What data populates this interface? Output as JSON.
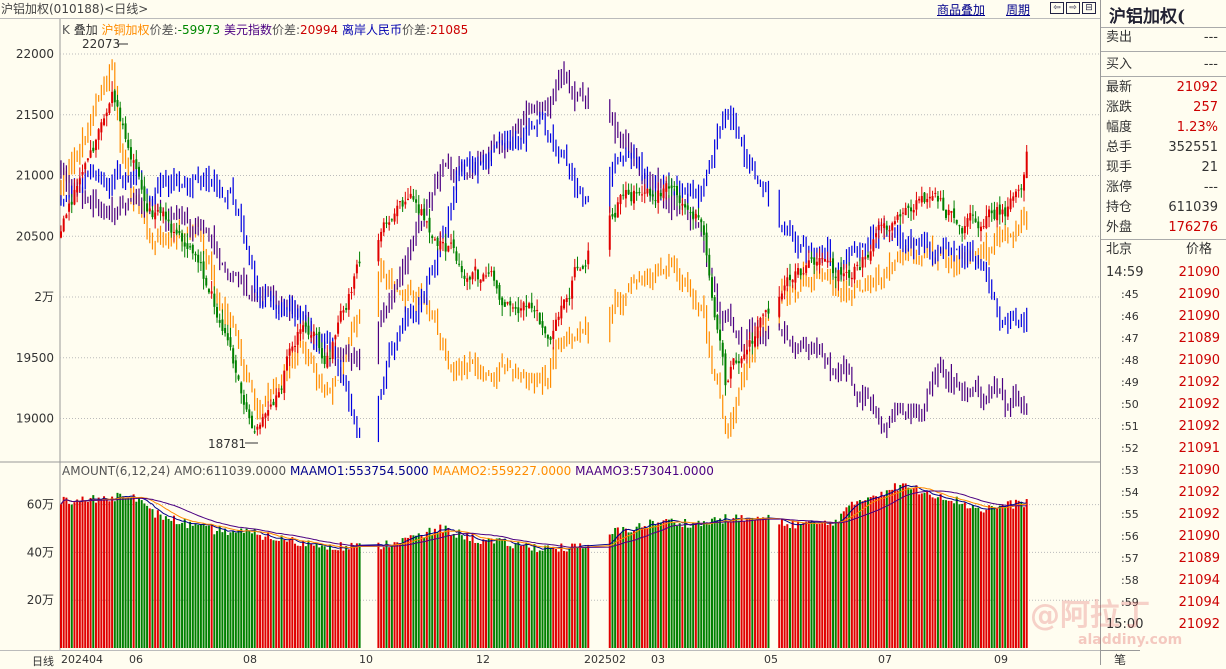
{
  "header": {
    "title": "沪铝加权(010188)<日线>",
    "overlay_link": "商品叠加",
    "period_link": "周期"
  },
  "legend": {
    "k": "K",
    "overlay": "叠加",
    "s1_name": "沪铜加权",
    "s1_diff_label": "价差:",
    "s1_diff": "-59973",
    "s2_name": "美元指数",
    "s2_diff_label": "价差:",
    "s2_diff": "20994",
    "s3_name": "离岸人民币",
    "s3_diff_label": "价差:",
    "s3_diff": "21085"
  },
  "annotations": {
    "high": "22073",
    "low": "18781"
  },
  "price_axis": [
    "22000",
    "21500",
    "21000",
    "20500",
    "2万",
    "19500",
    "19000"
  ],
  "volume_axis": [
    "60万",
    "40万",
    "20万"
  ],
  "volume_legend": {
    "name": "AMOUNT(6,12,24)",
    "amo": "AMO:611039.0000",
    "ma1": "MAAMO1:553754.5000",
    "ma2": "MAAMO2:559227.0000",
    "ma3": "MAAMO3:573041.0000"
  },
  "x_axis": {
    "period": "日线",
    "labels": [
      "202404",
      "06",
      "08",
      "10",
      "12",
      "202502",
      "03",
      "05",
      "07",
      "09"
    ]
  },
  "colors": {
    "up": "#e00000",
    "down": "#008000",
    "copper": "#ff8c00",
    "usd": "#4b0082",
    "cnh": "#0000e0",
    "ma1": "#00008b",
    "ma2": "#ff8c00",
    "ma3": "#4b0082"
  },
  "chart_data": {
    "type": "candlestick",
    "bars": 360,
    "price_range": [
      18700,
      22150
    ],
    "ticks": [
      22000,
      21500,
      21000,
      20500,
      20000,
      19500,
      19000
    ],
    "gaps": [
      [
        112,
        117
      ],
      [
        197,
        203
      ],
      [
        264,
        266
      ]
    ],
    "series": [
      {
        "name": "沪铝加权",
        "kind": "candle",
        "anchors": [
          [
            0,
            20500
          ],
          [
            6,
            20900
          ],
          [
            19,
            21600
          ],
          [
            26,
            21200
          ],
          [
            33,
            20800
          ],
          [
            52,
            20300
          ],
          [
            63,
            19500
          ],
          [
            72,
            18800
          ],
          [
            82,
            19300
          ],
          [
            89,
            19800
          ],
          [
            100,
            19500
          ],
          [
            112,
            20300
          ],
          [
            130,
            20800
          ],
          [
            141,
            20500
          ],
          [
            152,
            20200
          ],
          [
            171,
            19900
          ],
          [
            182,
            19700
          ],
          [
            193,
            20300
          ],
          [
            208,
            20800
          ],
          [
            223,
            20900
          ],
          [
            238,
            20700
          ],
          [
            247,
            19300
          ],
          [
            260,
            19800
          ],
          [
            275,
            20200
          ],
          [
            294,
            20200
          ],
          [
            305,
            20500
          ],
          [
            323,
            20800
          ],
          [
            335,
            20600
          ],
          [
            346,
            20700
          ],
          [
            357,
            20800
          ],
          [
            359,
            21092
          ]
        ]
      },
      {
        "name": "沪铜加权",
        "kind": "ohlc",
        "color": "copper",
        "anchors": [
          [
            0,
            20900
          ],
          [
            19,
            21900
          ],
          [
            22,
            21200
          ],
          [
            33,
            20500
          ],
          [
            52,
            20500
          ],
          [
            63,
            19700
          ],
          [
            74,
            19000
          ],
          [
            89,
            19600
          ],
          [
            100,
            19200
          ],
          [
            119,
            20100
          ],
          [
            134,
            20000
          ],
          [
            145,
            19500
          ],
          [
            171,
            19400
          ],
          [
            180,
            19300
          ],
          [
            193,
            19800
          ],
          [
            208,
            20000
          ],
          [
            223,
            20300
          ],
          [
            238,
            20000
          ],
          [
            247,
            18900
          ],
          [
            260,
            19700
          ],
          [
            275,
            20200
          ],
          [
            294,
            20100
          ],
          [
            312,
            20300
          ],
          [
            335,
            20300
          ],
          [
            349,
            20400
          ],
          [
            359,
            20700
          ]
        ]
      },
      {
        "name": "美元指数",
        "kind": "ohlc",
        "color": "usd",
        "anchors": [
          [
            0,
            21000
          ],
          [
            15,
            20800
          ],
          [
            33,
            20700
          ],
          [
            52,
            20500
          ],
          [
            71,
            20000
          ],
          [
            89,
            19800
          ],
          [
            100,
            19600
          ],
          [
            112,
            19400
          ],
          [
            123,
            20000
          ],
          [
            141,
            21000
          ],
          [
            156,
            21100
          ],
          [
            171,
            21400
          ],
          [
            186,
            21800
          ],
          [
            201,
            21500
          ],
          [
            216,
            21000
          ],
          [
            238,
            20600
          ],
          [
            245,
            19800
          ],
          [
            260,
            19700
          ],
          [
            275,
            19600
          ],
          [
            294,
            19300
          ],
          [
            305,
            18900
          ],
          [
            320,
            19100
          ],
          [
            327,
            19500
          ],
          [
            335,
            19200
          ],
          [
            349,
            19200
          ],
          [
            359,
            19100
          ]
        ]
      },
      {
        "name": "离岸人民币",
        "kind": "ohlc",
        "color": "cnh",
        "anchors": [
          [
            0,
            20800
          ],
          [
            15,
            21000
          ],
          [
            33,
            20900
          ],
          [
            48,
            21000
          ],
          [
            63,
            20800
          ],
          [
            74,
            20000
          ],
          [
            89,
            19800
          ],
          [
            100,
            19600
          ],
          [
            112,
            18900
          ],
          [
            123,
            19600
          ],
          [
            134,
            20000
          ],
          [
            149,
            21000
          ],
          [
            164,
            21200
          ],
          [
            178,
            21500
          ],
          [
            193,
            20800
          ],
          [
            208,
            21200
          ],
          [
            223,
            20900
          ],
          [
            238,
            20800
          ],
          [
            247,
            21600
          ],
          [
            260,
            20900
          ],
          [
            268,
            20500
          ],
          [
            290,
            20300
          ],
          [
            305,
            20500
          ],
          [
            327,
            20400
          ],
          [
            342,
            20300
          ],
          [
            349,
            19900
          ],
          [
            359,
            19800
          ]
        ]
      }
    ],
    "volume": {
      "unit": "万",
      "range": [
        0,
        70
      ],
      "anchors": [
        [
          0,
          62
        ],
        [
          15,
          62
        ],
        [
          26,
          65
        ],
        [
          33,
          57
        ],
        [
          52,
          50
        ],
        [
          71,
          48
        ],
        [
          89,
          44
        ],
        [
          112,
          42
        ],
        [
          119,
          43
        ],
        [
          134,
          47
        ],
        [
          141,
          50
        ],
        [
          156,
          45
        ],
        [
          178,
          42
        ],
        [
          197,
          42
        ],
        [
          204,
          48
        ],
        [
          223,
          53
        ],
        [
          238,
          52
        ],
        [
          245,
          54
        ],
        [
          264,
          54
        ],
        [
          268,
          52
        ],
        [
          286,
          52
        ],
        [
          297,
          62
        ],
        [
          312,
          68
        ],
        [
          327,
          64
        ],
        [
          342,
          58
        ],
        [
          359,
          61
        ]
      ],
      "ma_periods": [
        6,
        12,
        24
      ]
    }
  },
  "side": {
    "title": "沪铝加权(",
    "quotes": [
      {
        "label": "卖出",
        "value": "---"
      },
      {
        "label": "买入",
        "value": "---"
      },
      {
        "label": "最新",
        "value": "21092",
        "red": true
      },
      {
        "label": "涨跌",
        "value": "257",
        "red": true
      },
      {
        "label": "幅度",
        "value": "1.23%",
        "red": true
      },
      {
        "label": "总手",
        "value": "352551"
      },
      {
        "label": "现手",
        "value": "21"
      },
      {
        "label": "涨停",
        "value": "---"
      },
      {
        "label": "持仓",
        "value": "611039"
      },
      {
        "label": "外盘",
        "value": "176276",
        "red": true
      }
    ],
    "ticks_header": {
      "time": "北京",
      "price": "价格"
    },
    "ticks": [
      [
        "14:59",
        "21090"
      ],
      [
        ":45",
        "21090"
      ],
      [
        ":46",
        "21090"
      ],
      [
        ":47",
        "21089"
      ],
      [
        ":48",
        "21090"
      ],
      [
        ":49",
        "21092"
      ],
      [
        ":50",
        "21092"
      ],
      [
        ":51",
        "21092"
      ],
      [
        ":52",
        "21091"
      ],
      [
        ":53",
        "21090"
      ],
      [
        ":54",
        "21092"
      ],
      [
        ":55",
        "21092"
      ],
      [
        ":56",
        "21090"
      ],
      [
        ":57",
        "21089"
      ],
      [
        ":58",
        "21094"
      ],
      [
        ":59",
        "21094"
      ],
      [
        "15:00",
        "21092"
      ]
    ],
    "bottom_tab": "笔",
    "watermark": "阿拉丁",
    "watermark2": "aladdiny.com"
  }
}
